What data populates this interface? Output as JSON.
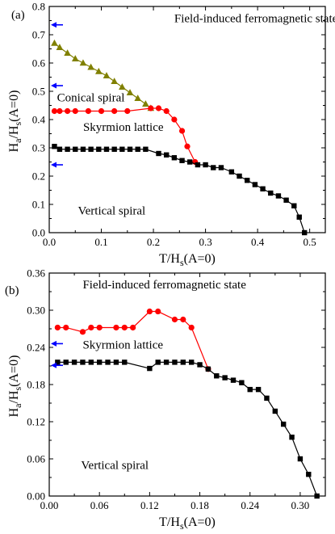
{
  "chart_data": [
    {
      "type": "line",
      "panel_label": "(a)",
      "xlabel": {
        "main": "T/H",
        "sub": "s",
        "tail": "(A=0)"
      },
      "ylabel": {
        "main": "H",
        "sub1": "a",
        "mid": "/H",
        "sub2": "s",
        "tail": "(A=0)"
      },
      "xlim": [
        0,
        0.53
      ],
      "ylim": [
        0,
        0.8
      ],
      "x_ticks": [
        0.0,
        0.1,
        0.2,
        0.3,
        0.4,
        0.5
      ],
      "x_tick_labels": [
        "0.0",
        "0.1",
        "0.2",
        "0.3",
        "0.4",
        "0.5"
      ],
      "y_ticks": [
        0.0,
        0.1,
        0.2,
        0.3,
        0.4,
        0.5,
        0.6,
        0.7,
        0.8
      ],
      "y_tick_labels": [
        "0.0",
        "0.1",
        "0.2",
        "0.3",
        "0.4",
        "0.5",
        "0.6",
        "0.7",
        "0.8"
      ],
      "annotations": [
        {
          "text": "Field-induced ferromagnetic state",
          "x": 0.24,
          "y": 0.745
        },
        {
          "text": "Conical spiral",
          "x": 0.015,
          "y": 0.465
        },
        {
          "text": "Skyrmion lattice",
          "x": 0.065,
          "y": 0.36
        },
        {
          "text": "Vertical spiral",
          "x": 0.055,
          "y": 0.065
        }
      ],
      "arrows_at_y": [
        0.735,
        0.52,
        0.24
      ],
      "series": [
        {
          "marker": "triangle",
          "color": "#808000",
          "points": [
            [
              0.01,
              0.67
            ],
            [
              0.02,
              0.655
            ],
            [
              0.035,
              0.635
            ],
            [
              0.05,
              0.615
            ],
            [
              0.065,
              0.6
            ],
            [
              0.08,
              0.585
            ],
            [
              0.095,
              0.57
            ],
            [
              0.11,
              0.555
            ],
            [
              0.125,
              0.535
            ],
            [
              0.14,
              0.515
            ],
            [
              0.155,
              0.495
            ],
            [
              0.17,
              0.475
            ],
            [
              0.185,
              0.455
            ],
            [
              0.195,
              0.44
            ]
          ]
        },
        {
          "marker": "circle",
          "color": "#ff0000",
          "points": [
            [
              0.01,
              0.43
            ],
            [
              0.02,
              0.43
            ],
            [
              0.035,
              0.43
            ],
            [
              0.05,
              0.43
            ],
            [
              0.075,
              0.43
            ],
            [
              0.1,
              0.43
            ],
            [
              0.125,
              0.43
            ],
            [
              0.15,
              0.43
            ],
            [
              0.195,
              0.44
            ],
            [
              0.21,
              0.44
            ],
            [
              0.225,
              0.43
            ],
            [
              0.24,
              0.4
            ],
            [
              0.255,
              0.36
            ],
            [
              0.265,
              0.305
            ],
            [
              0.28,
              0.25
            ]
          ]
        },
        {
          "marker": "square",
          "color": "#000000",
          "points": [
            [
              0.01,
              0.305
            ],
            [
              0.02,
              0.295
            ],
            [
              0.035,
              0.295
            ],
            [
              0.05,
              0.295
            ],
            [
              0.065,
              0.295
            ],
            [
              0.08,
              0.295
            ],
            [
              0.095,
              0.295
            ],
            [
              0.11,
              0.295
            ],
            [
              0.125,
              0.295
            ],
            [
              0.14,
              0.295
            ],
            [
              0.155,
              0.295
            ],
            [
              0.17,
              0.295
            ],
            [
              0.185,
              0.295
            ],
            [
              0.21,
              0.28
            ],
            [
              0.225,
              0.275
            ],
            [
              0.24,
              0.265
            ],
            [
              0.255,
              0.255
            ],
            [
              0.27,
              0.25
            ],
            [
              0.285,
              0.24
            ],
            [
              0.3,
              0.24
            ],
            [
              0.315,
              0.23
            ],
            [
              0.33,
              0.23
            ],
            [
              0.35,
              0.215
            ],
            [
              0.365,
              0.2
            ],
            [
              0.38,
              0.185
            ],
            [
              0.395,
              0.17
            ],
            [
              0.41,
              0.155
            ],
            [
              0.425,
              0.14
            ],
            [
              0.44,
              0.13
            ],
            [
              0.455,
              0.115
            ],
            [
              0.47,
              0.095
            ],
            [
              0.48,
              0.055
            ],
            [
              0.49,
              0.0
            ]
          ]
        }
      ]
    },
    {
      "type": "line",
      "panel_label": "(b)",
      "xlabel": {
        "main": "T/H",
        "sub": "s",
        "tail": "(A=0)"
      },
      "ylabel": {
        "main": "H",
        "sub1": "a",
        "mid": "/H",
        "sub2": "s",
        "tail": "(A=0)"
      },
      "xlim": [
        0,
        0.33
      ],
      "ylim": [
        0,
        0.36
      ],
      "x_ticks": [
        0.0,
        0.06,
        0.12,
        0.18,
        0.24,
        0.3
      ],
      "x_tick_labels": [
        "0.00",
        "0.06",
        "0.12",
        "0.18",
        "0.24",
        "0.30"
      ],
      "y_ticks": [
        0.0,
        0.06,
        0.12,
        0.18,
        0.24,
        0.3,
        0.36
      ],
      "y_tick_labels": [
        "0.00",
        "0.06",
        "0.12",
        "0.18",
        "0.24",
        "0.30",
        "0.36"
      ],
      "annotations": [
        {
          "text": "Field-induced ferromagnetic state",
          "x": 0.04,
          "y": 0.335
        },
        {
          "text": "Skyrmion lattice",
          "x": 0.04,
          "y": 0.238
        },
        {
          "text": "Vertical spiral",
          "x": 0.038,
          "y": 0.044
        }
      ],
      "arrows_at_y": [
        0.246,
        0.211
      ],
      "series": [
        {
          "marker": "circle",
          "color": "#ff0000",
          "points": [
            [
              0.01,
              0.272
            ],
            [
              0.02,
              0.272
            ],
            [
              0.04,
              0.265
            ],
            [
              0.05,
              0.272
            ],
            [
              0.06,
              0.272
            ],
            [
              0.08,
              0.272
            ],
            [
              0.09,
              0.272
            ],
            [
              0.1,
              0.272
            ],
            [
              0.12,
              0.298
            ],
            [
              0.13,
              0.298
            ],
            [
              0.15,
              0.285
            ],
            [
              0.16,
              0.285
            ],
            [
              0.17,
              0.272
            ],
            [
              0.19,
              0.205
            ]
          ]
        },
        {
          "marker": "square",
          "color": "#000000",
          "points": [
            [
              0.01,
              0.216
            ],
            [
              0.02,
              0.216
            ],
            [
              0.03,
              0.216
            ],
            [
              0.04,
              0.216
            ],
            [
              0.05,
              0.216
            ],
            [
              0.06,
              0.216
            ],
            [
              0.07,
              0.216
            ],
            [
              0.08,
              0.216
            ],
            [
              0.09,
              0.216
            ],
            [
              0.12,
              0.206
            ],
            [
              0.13,
              0.216
            ],
            [
              0.14,
              0.216
            ],
            [
              0.15,
              0.216
            ],
            [
              0.16,
              0.216
            ],
            [
              0.17,
              0.216
            ],
            [
              0.18,
              0.212
            ],
            [
              0.19,
              0.205
            ],
            [
              0.2,
              0.194
            ],
            [
              0.21,
              0.191
            ],
            [
              0.22,
              0.187
            ],
            [
              0.23,
              0.183
            ],
            [
              0.24,
              0.172
            ],
            [
              0.25,
              0.172
            ],
            [
              0.26,
              0.158
            ],
            [
              0.27,
              0.137
            ],
            [
              0.28,
              0.116
            ],
            [
              0.29,
              0.095
            ],
            [
              0.3,
              0.06
            ],
            [
              0.31,
              0.035
            ],
            [
              0.32,
              0.0
            ]
          ]
        }
      ]
    }
  ]
}
